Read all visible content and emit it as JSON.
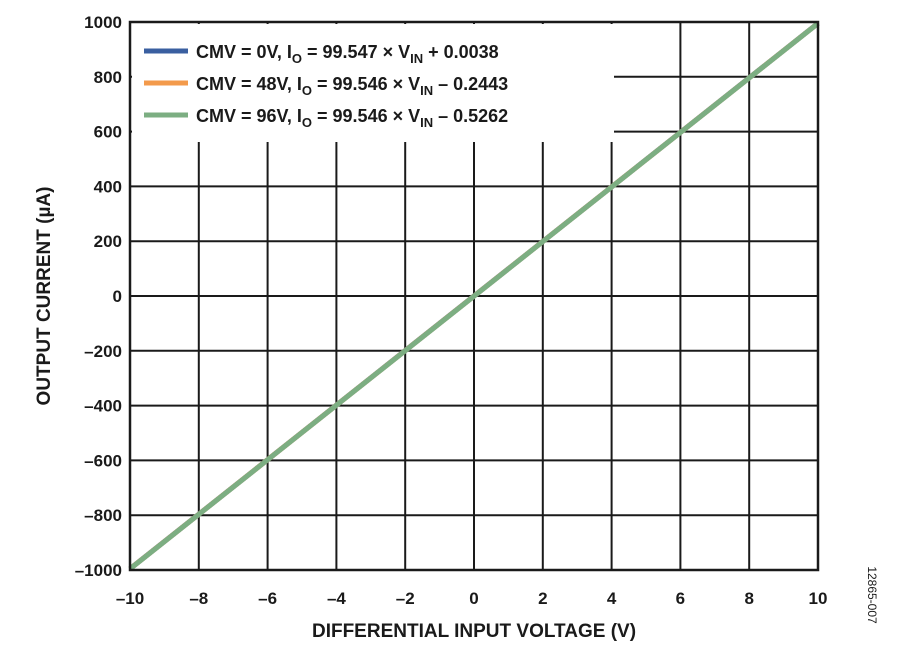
{
  "chart_data": {
    "type": "line",
    "xlabel": "DIFFERENTIAL INPUT VOLTAGE (V)",
    "ylabel": "OUTPUT CURRENT (µA)",
    "xlim": [
      -10,
      10
    ],
    "ylim": [
      -1000,
      1000
    ],
    "xticks": [
      -10,
      -8,
      -6,
      -4,
      -2,
      0,
      2,
      4,
      6,
      8,
      10
    ],
    "yticks": [
      -1000,
      -800,
      -600,
      -400,
      -200,
      0,
      200,
      400,
      600,
      800,
      1000
    ],
    "xtick_labels": [
      "–10",
      "–8",
      "–6",
      "–4",
      "–2",
      "0",
      "2",
      "4",
      "6",
      "8",
      "10"
    ],
    "ytick_labels": [
      "–1000",
      "–800",
      "–600",
      "–400",
      "–200",
      "0",
      "200",
      "400",
      "600",
      "800",
      "1000"
    ],
    "grid": true,
    "legend_position": "top-left",
    "series": [
      {
        "name": "CMV = 0V, IO = 99.547 × VIN + 0.0038",
        "legend_parts": {
          "pre": "CMV = 0V, I",
          "sub1": "O",
          "mid": " = 99.547 × V",
          "sub2": "IN",
          "post": " + 0.0038"
        },
        "color": "#3a5fa0",
        "x": [
          -10,
          10
        ],
        "y": [
          -995.47,
          995.47
        ]
      },
      {
        "name": "CMV = 48V, IO = 99.546 × VIN – 0.2443",
        "legend_parts": {
          "pre": "CMV = 48V, I",
          "sub1": "O",
          "mid": " = 99.546 × V",
          "sub2": "IN",
          "post": " – 0.2443"
        },
        "color": "#f39a4b",
        "x": [
          -10,
          10
        ],
        "y": [
          -995.7,
          995.22
        ]
      },
      {
        "name": "CMV = 96V, IO = 99.546 × VIN – 0.5262",
        "legend_parts": {
          "pre": "CMV = 96V, I",
          "sub1": "O",
          "mid": " = 99.546 × V",
          "sub2": "IN",
          "post": " – 0.5262"
        },
        "color": "#7cae82",
        "x": [
          -10,
          10
        ],
        "y": [
          -995.99,
          994.93
        ]
      }
    ]
  },
  "figure_id": "12865-007"
}
